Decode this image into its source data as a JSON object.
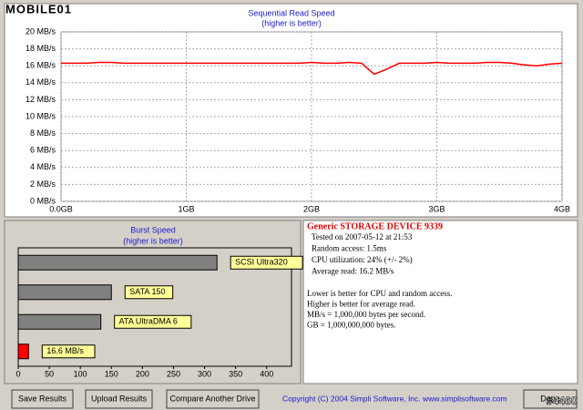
{
  "watermark": {
    "logo": "MOBILE01",
    "tag": "#4460"
  },
  "chart_data": [
    {
      "type": "line",
      "title": "Sequential Read Speed",
      "subtitle": "(higher is better)",
      "x": [
        0,
        0.1,
        0.2,
        0.3,
        0.4,
        0.5,
        0.6,
        0.7,
        0.8,
        0.9,
        1,
        1.1,
        1.2,
        1.3,
        1.4,
        1.5,
        1.6,
        1.7,
        1.8,
        1.9,
        2,
        2.1,
        2.2,
        2.3,
        2.4,
        2.5,
        2.6,
        2.7,
        2.8,
        2.9,
        3,
        3.1,
        3.2,
        3.3,
        3.4,
        3.5,
        3.6,
        3.7,
        3.8,
        3.9,
        4
      ],
      "series": [
        {
          "name": "Read speed",
          "color": "#ff0000",
          "values": [
            16.3,
            16.3,
            16.3,
            16.4,
            16.4,
            16.3,
            16.3,
            16.3,
            16.3,
            16.3,
            16.3,
            16.3,
            16.3,
            16.3,
            16.3,
            16.3,
            16.3,
            16.3,
            16.3,
            16.3,
            16.4,
            16.3,
            16.3,
            16.4,
            16.3,
            15.0,
            15.6,
            16.3,
            16.3,
            16.3,
            16.4,
            16.3,
            16.3,
            16.3,
            16.4,
            16.4,
            16.3,
            16.1,
            16.0,
            16.2,
            16.3
          ]
        }
      ],
      "xlim": [
        0,
        4
      ],
      "xticks": [
        {
          "value": 0,
          "label": "0.0GB"
        },
        {
          "value": 1,
          "label": "1GB"
        },
        {
          "value": 2,
          "label": "2GB"
        },
        {
          "value": 3,
          "label": "3GB"
        },
        {
          "value": 4,
          "label": "4GB"
        }
      ],
      "ylim": [
        0,
        20
      ],
      "yticks": [
        {
          "value": 0,
          "label": "0 MB/s"
        },
        {
          "value": 2,
          "label": "2 MB/s"
        },
        {
          "value": 4,
          "label": "4 MB/s"
        },
        {
          "value": 6,
          "label": "6 MB/s"
        },
        {
          "value": 8,
          "label": "8 MB/s"
        },
        {
          "value": 10,
          "label": "10 MB/s"
        },
        {
          "value": 12,
          "label": "12 MB/s"
        },
        {
          "value": 14,
          "label": "14 MB/s"
        },
        {
          "value": 16,
          "label": "16 MB/s"
        },
        {
          "value": 18,
          "label": "18 MB/s"
        },
        {
          "value": 20,
          "label": "20 MB/s"
        }
      ],
      "grid": true
    },
    {
      "type": "hbar",
      "title": "Burst Speed",
      "subtitle": "(higher is better)",
      "categories": [
        "SCSI Ultra320",
        "SATA 150",
        "ATA UltraDMA 6",
        null
      ],
      "values": [
        320,
        150,
        133,
        16.6
      ],
      "value_labels": [
        null,
        null,
        null,
        "16.6 MB/s"
      ],
      "colors": [
        "#808080",
        "#808080",
        "#808080",
        "#ff0000"
      ],
      "xlim": [
        0,
        440
      ],
      "xticks": [
        0,
        50,
        100,
        150,
        200,
        250,
        300,
        350,
        400
      ]
    }
  ],
  "info": {
    "device": "Generic STORAGE DEVICE 9339",
    "lines": [
      "Tested on 2007-05-12 at 21:53",
      "Random access: 1.5ms",
      "CPU utilization: 24% (+/- 2%)",
      "Average read: 16.2 MB/s"
    ],
    "notes": [
      "Lower is better for CPU and random access.",
      "Higher is better for average read.",
      "MB/s = 1,000,000 bytes per second.",
      "GB = 1,000,000,000 bytes."
    ]
  },
  "buttons": [
    "Save Results",
    "Upload Results",
    "Compare Another Drive",
    "Done"
  ],
  "copyright": "Copyright (C) 2004 Simpli Software, Inc. www.simplisoftware.com"
}
